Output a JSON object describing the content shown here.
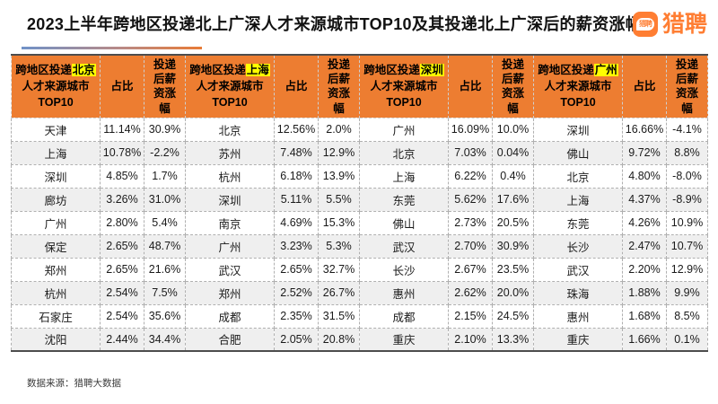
{
  "page": {
    "title": "2023上半年跨地区投递北上广深人才来源城市TOP10及其投递北上广深后的薪资涨幅",
    "source_note": "数据来源：猎聘大数据"
  },
  "logo": {
    "brand": "猎聘",
    "icon_text": "猎聘",
    "brand_color": "#ff7e33"
  },
  "table": {
    "header": {
      "prefix": "跨地区投递",
      "line2": "人才来源城市",
      "line3": "TOP10",
      "ratio": "占比",
      "salary": "投递后薪资涨幅"
    }
  },
  "colors": {
    "header_bg": "#ed7d31",
    "highlight": "#ffff00",
    "row_alt": "#efefef",
    "table_border": "#4d4d4d",
    "underline_gradient": [
      "#7092c8",
      "#e87b36"
    ]
  },
  "chart_data": {
    "type": "table",
    "title": "2023上半年跨地区投递北上广深人才来源城市TOP10及其投递北上广深后的薪资涨幅",
    "source_note": "数据来源：猎聘大数据",
    "columns_per_group": [
      "跨地区投递{目标城市}人才来源城市TOP10",
      "占比",
      "投递后薪资涨幅"
    ],
    "groups": [
      {
        "target_city": "北京",
        "rows": [
          [
            "天津",
            "11.14%",
            "30.9%"
          ],
          [
            "上海",
            "10.78%",
            "-2.2%"
          ],
          [
            "深圳",
            "4.85%",
            "1.7%"
          ],
          [
            "廊坊",
            "3.26%",
            "31.0%"
          ],
          [
            "广州",
            "2.80%",
            "5.4%"
          ],
          [
            "保定",
            "2.65%",
            "48.7%"
          ],
          [
            "郑州",
            "2.65%",
            "21.6%"
          ],
          [
            "杭州",
            "2.54%",
            "7.5%"
          ],
          [
            "石家庄",
            "2.54%",
            "35.6%"
          ],
          [
            "沈阳",
            "2.44%",
            "34.4%"
          ]
        ]
      },
      {
        "target_city": "上海",
        "rows": [
          [
            "北京",
            "12.56%",
            "2.0%"
          ],
          [
            "苏州",
            "7.48%",
            "12.9%"
          ],
          [
            "杭州",
            "6.18%",
            "13.9%"
          ],
          [
            "深圳",
            "5.11%",
            "5.5%"
          ],
          [
            "南京",
            "4.69%",
            "15.3%"
          ],
          [
            "广州",
            "3.23%",
            "5.3%"
          ],
          [
            "武汉",
            "2.65%",
            "32.7%"
          ],
          [
            "郑州",
            "2.52%",
            "26.7%"
          ],
          [
            "成都",
            "2.35%",
            "31.5%"
          ],
          [
            "合肥",
            "2.05%",
            "20.8%"
          ]
        ]
      },
      {
        "target_city": "深圳",
        "rows": [
          [
            "广州",
            "16.09%",
            "10.0%"
          ],
          [
            "北京",
            "7.03%",
            "0.04%"
          ],
          [
            "上海",
            "6.22%",
            "0.4%"
          ],
          [
            "东莞",
            "5.62%",
            "17.6%"
          ],
          [
            "佛山",
            "2.73%",
            "20.5%"
          ],
          [
            "武汉",
            "2.70%",
            "30.9%"
          ],
          [
            "长沙",
            "2.67%",
            "23.5%"
          ],
          [
            "惠州",
            "2.62%",
            "20.0%"
          ],
          [
            "成都",
            "2.15%",
            "24.5%"
          ],
          [
            "重庆",
            "2.10%",
            "13.3%"
          ]
        ]
      },
      {
        "target_city": "广州",
        "rows": [
          [
            "深圳",
            "16.66%",
            "-4.1%"
          ],
          [
            "佛山",
            "9.72%",
            "8.8%"
          ],
          [
            "北京",
            "4.80%",
            "-8.0%"
          ],
          [
            "上海",
            "4.37%",
            "-8.9%"
          ],
          [
            "东莞",
            "4.26%",
            "10.9%"
          ],
          [
            "长沙",
            "2.47%",
            "10.7%"
          ],
          [
            "武汉",
            "2.20%",
            "12.9%"
          ],
          [
            "珠海",
            "1.88%",
            "9.9%"
          ],
          [
            "惠州",
            "1.68%",
            "8.5%"
          ],
          [
            "重庆",
            "1.66%",
            "0.1%"
          ]
        ]
      }
    ]
  }
}
